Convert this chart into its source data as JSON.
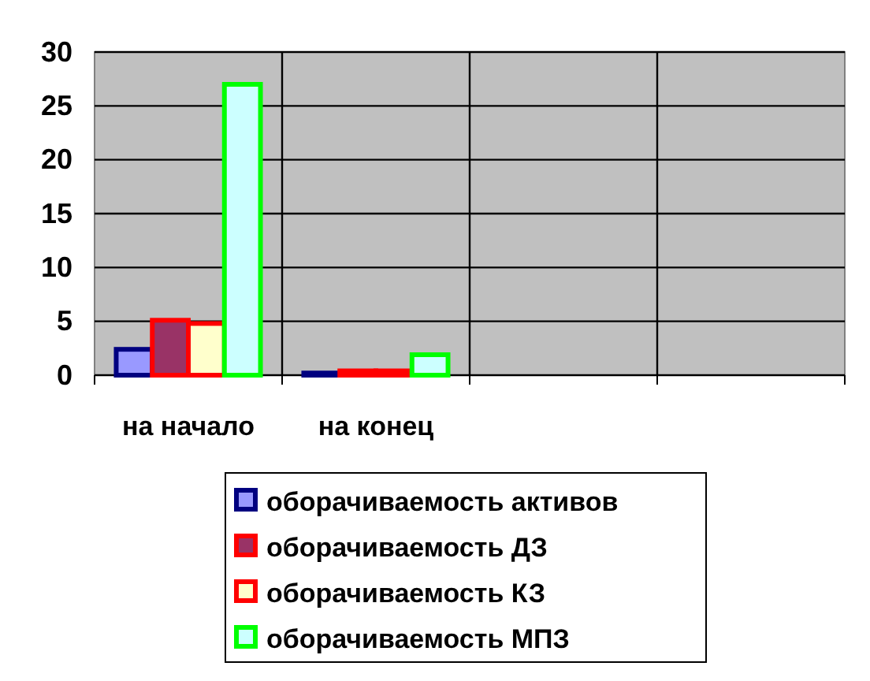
{
  "chart_data": {
    "type": "bar",
    "categories": [
      "на начало",
      "на конец",
      null,
      null
    ],
    "series": [
      {
        "name": "оборачиваемость активов",
        "color": "#9999ff",
        "values": [
          2.4,
          0.2,
          null,
          null
        ]
      },
      {
        "name": "оборачиваемость ДЗ",
        "color": "#993366",
        "values": [
          5.1,
          0.4,
          null,
          null
        ]
      },
      {
        "name": "оборачиваемость КЗ",
        "color": "#ffffcc",
        "values": [
          4.8,
          0.4,
          null,
          null
        ]
      },
      {
        "name": "оборачиваемость МПЗ",
        "color": "#ccffff",
        "values": [
          27,
          1.9,
          null,
          null
        ]
      }
    ],
    "ylim": [
      0,
      30
    ],
    "yticks": [
      0,
      5,
      10,
      15,
      20,
      25,
      30
    ],
    "grid": true,
    "legend": "bottom"
  }
}
